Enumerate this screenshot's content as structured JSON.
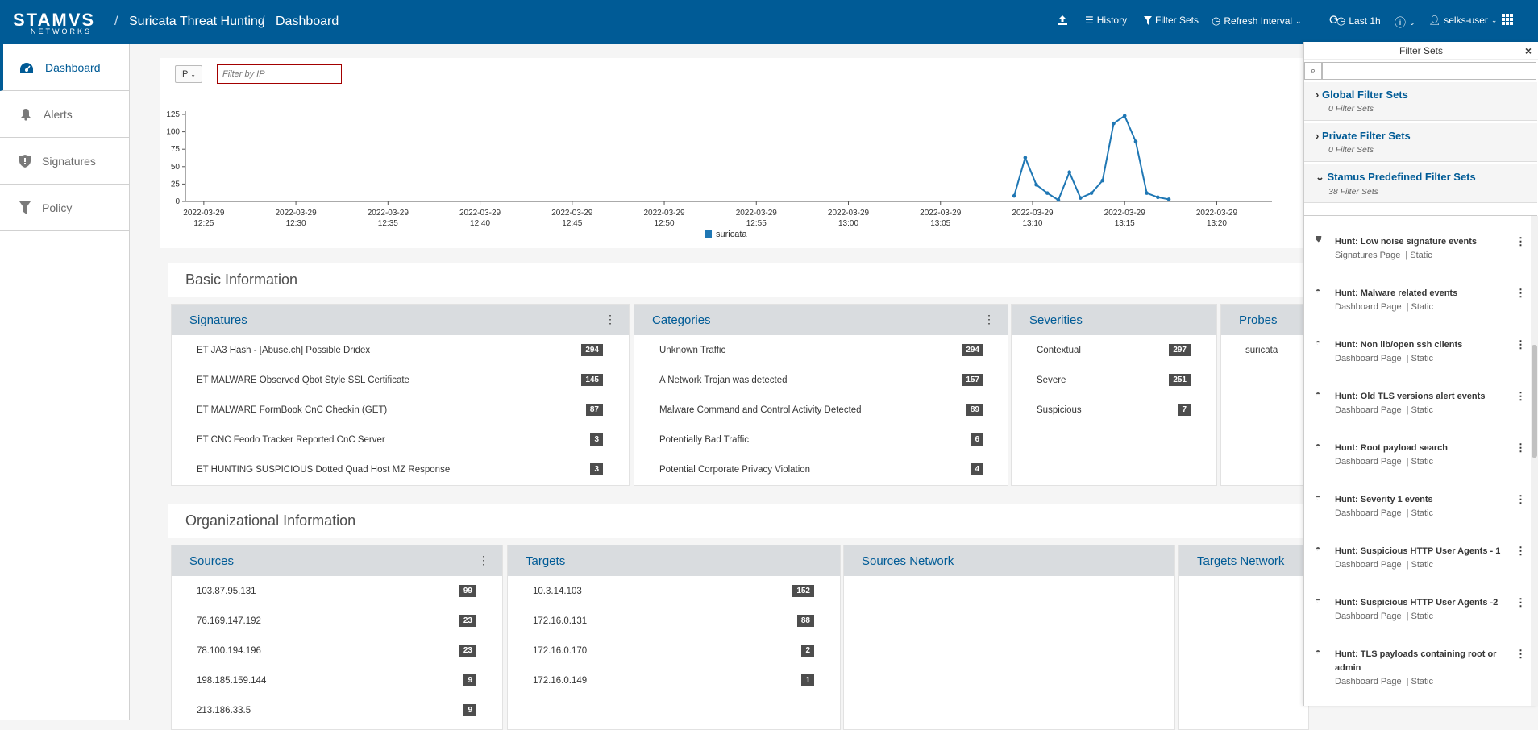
{
  "header": {
    "logo_main": "STAMVS",
    "logo_sub": "NETWORKS",
    "breadcrumb": [
      "Suricata Threat Hunting",
      "Dashboard"
    ],
    "nav": {
      "history": "History",
      "filter_sets": "Filter Sets",
      "refresh_interval": "Refresh Interval",
      "last": "Last 1h",
      "user": "selks-user"
    }
  },
  "sidebar": {
    "items": [
      {
        "label": "Dashboard",
        "icon": "dashboard-icon",
        "active": true
      },
      {
        "label": "Alerts",
        "icon": "bell-icon"
      },
      {
        "label": "Signatures",
        "icon": "shield-icon"
      },
      {
        "label": "Policy",
        "icon": "filter-icon"
      }
    ]
  },
  "filter": {
    "type": "IP",
    "placeholder": "Filter by IP"
  },
  "chart_data": {
    "type": "line",
    "title": "",
    "xlabel": "",
    "ylabel": "",
    "ylim": [
      0,
      125
    ],
    "yticks": [
      0,
      25,
      50,
      75,
      100,
      125
    ],
    "xticks": [
      "2022-03-29 12:25",
      "2022-03-29 12:30",
      "2022-03-29 12:35",
      "2022-03-29 12:40",
      "2022-03-29 12:45",
      "2022-03-29 12:50",
      "2022-03-29 12:55",
      "2022-03-29 13:00",
      "2022-03-29 13:05",
      "2022-03-29 13:10",
      "2022-03-29 13:15",
      "2022-03-29 13:20"
    ],
    "legend": "bottom-center",
    "series": [
      {
        "name": "suricata",
        "color": "#1f77b4",
        "points": [
          [
            "13:09:00",
            8
          ],
          [
            "13:09:36",
            63
          ],
          [
            "13:10:12",
            24
          ],
          [
            "13:10:48",
            12
          ],
          [
            "13:11:24",
            2
          ],
          [
            "13:12:00",
            42
          ],
          [
            "13:12:36",
            5
          ],
          [
            "13:13:12",
            12
          ],
          [
            "13:13:48",
            30
          ],
          [
            "13:14:24",
            112
          ],
          [
            "13:15:00",
            123
          ],
          [
            "13:15:36",
            86
          ],
          [
            "13:16:12",
            12
          ],
          [
            "13:16:48",
            6
          ],
          [
            "13:17:24",
            3
          ]
        ]
      }
    ]
  },
  "basic_info": {
    "title": "Basic Information",
    "signatures": {
      "title": "Signatures",
      "rows": [
        {
          "label": "ET JA3 Hash - [Abuse.ch] Possible Dridex",
          "count": "294"
        },
        {
          "label": "ET MALWARE Observed Qbot Style SSL Certificate",
          "count": "145"
        },
        {
          "label": "ET MALWARE FormBook CnC Checkin (GET)",
          "count": "87"
        },
        {
          "label": "ET CNC Feodo Tracker Reported CnC Server",
          "count": "3"
        },
        {
          "label": "ET HUNTING SUSPICIOUS Dotted Quad Host MZ Response",
          "count": "3"
        }
      ]
    },
    "categories": {
      "title": "Categories",
      "rows": [
        {
          "label": "Unknown Traffic",
          "count": "294"
        },
        {
          "label": "A Network Trojan was detected",
          "count": "157"
        },
        {
          "label": "Malware Command and Control Activity Detected",
          "count": "89"
        },
        {
          "label": "Potentially Bad Traffic",
          "count": "6"
        },
        {
          "label": "Potential Corporate Privacy Violation",
          "count": "4"
        }
      ]
    },
    "severities": {
      "title": "Severities",
      "rows": [
        {
          "label": "Contextual",
          "count": "297"
        },
        {
          "label": "Severe",
          "count": "251"
        },
        {
          "label": "Suspicious",
          "count": "7"
        }
      ]
    },
    "probes": {
      "title": "Probes",
      "rows": [
        {
          "label": "suricata"
        }
      ]
    }
  },
  "org_info": {
    "title": "Organizational Information",
    "sources": {
      "title": "Sources",
      "rows": [
        {
          "label": "103.87.95.131",
          "count": "99"
        },
        {
          "label": "76.169.147.192",
          "count": "23"
        },
        {
          "label": "78.100.194.196",
          "count": "23"
        },
        {
          "label": "198.185.159.144",
          "count": "9"
        },
        {
          "label": "213.186.33.5",
          "count": "9"
        }
      ]
    },
    "targets": {
      "title": "Targets",
      "rows": [
        {
          "label": "10.3.14.103",
          "count": "152"
        },
        {
          "label": "172.16.0.131",
          "count": "88"
        },
        {
          "label": "172.16.0.170",
          "count": "2"
        },
        {
          "label": "172.16.0.149",
          "count": "1"
        }
      ]
    },
    "sources_network": {
      "title": "Sources Network"
    },
    "targets_network": {
      "title": "Targets Network"
    }
  },
  "filter_sets": {
    "title": "Filter Sets",
    "groups": [
      {
        "title": "Global Filter Sets",
        "sub": "0 Filter Sets"
      },
      {
        "title": "Private Filter Sets",
        "sub": "0 Filter Sets"
      },
      {
        "title": "Stamus Predefined Filter Sets",
        "sub": "38 Filter Sets"
      }
    ],
    "items": [
      {
        "title": "Hunt: Low noise signature events",
        "page": "Signatures Page",
        "kind": "| Static",
        "icon": "shield-icon"
      },
      {
        "title": "Hunt: Malware related events",
        "page": "Dashboard Page",
        "kind": "| Static",
        "icon": "dashboard-icon"
      },
      {
        "title": "Hunt: Non lib/open ssh clients",
        "page": "Dashboard Page",
        "kind": "| Static",
        "icon": "dashboard-icon"
      },
      {
        "title": "Hunt: Old TLS versions alert events",
        "page": "Dashboard Page",
        "kind": "| Static",
        "icon": "dashboard-icon"
      },
      {
        "title": "Hunt: Root payload search",
        "page": "Dashboard Page",
        "kind": "| Static",
        "icon": "dashboard-icon"
      },
      {
        "title": "Hunt: Severity 1 events",
        "page": "Dashboard Page",
        "kind": "| Static",
        "icon": "dashboard-icon"
      },
      {
        "title": "Hunt: Suspicious HTTP User Agents - 1",
        "page": "Dashboard Page",
        "kind": "| Static",
        "icon": "dashboard-icon"
      },
      {
        "title": "Hunt: Suspicious HTTP User Agents -2",
        "page": "Dashboard Page",
        "kind": "| Static",
        "icon": "dashboard-icon"
      },
      {
        "title": "Hunt: TLS payloads containing root or admin",
        "page": "Dashboard Page",
        "kind": "| Static",
        "icon": "dashboard-icon"
      }
    ]
  }
}
